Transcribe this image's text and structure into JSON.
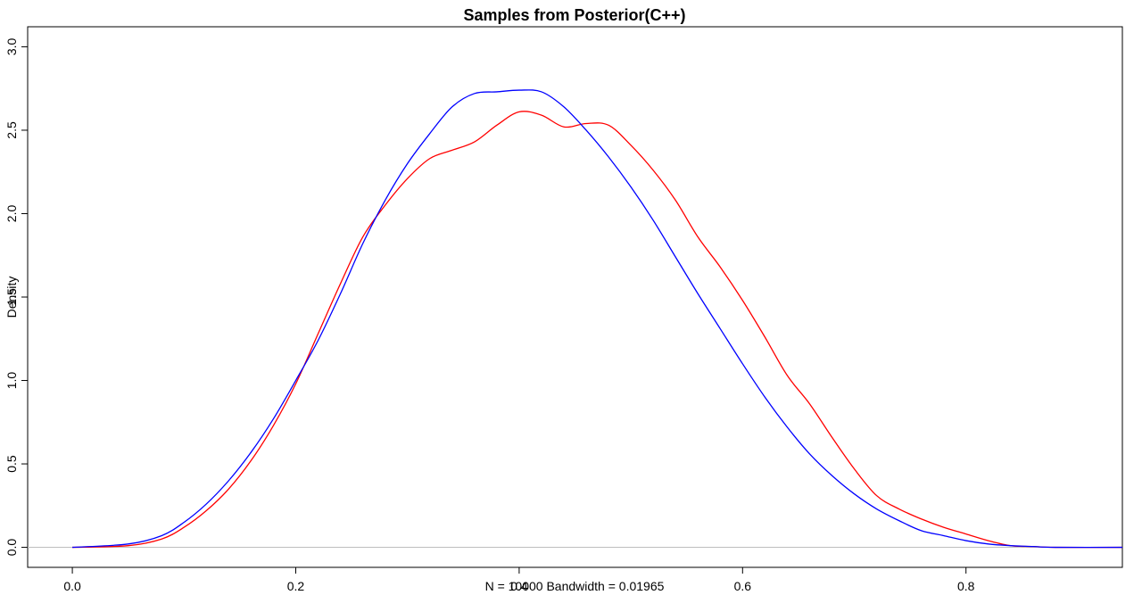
{
  "chart_data": {
    "type": "line",
    "title": "Samples from Posterior(C++)",
    "xlabel": "N = 10000   Bandwidth = 0.01965",
    "ylabel": "Density",
    "xlim": [
      -0.04,
      0.94
    ],
    "ylim": [
      -0.12,
      3.12
    ],
    "x_ticks": [
      "0.0",
      "0.2",
      "0.4",
      "0.6",
      "0.8"
    ],
    "x_tick_values": [
      0.0,
      0.2,
      0.4,
      0.6,
      0.8
    ],
    "y_ticks": [
      "0.0",
      "0.5",
      "1.0",
      "1.5",
      "2.0",
      "2.5",
      "3.0"
    ],
    "y_tick_values": [
      0.0,
      0.5,
      1.0,
      1.5,
      2.0,
      2.5,
      3.0
    ],
    "baseline": 0,
    "grid": false,
    "legend": "none",
    "series": [
      {
        "color": "#FF0000",
        "x": [
          0.0,
          0.05,
          0.08,
          0.1,
          0.12,
          0.14,
          0.16,
          0.18,
          0.2,
          0.22,
          0.24,
          0.26,
          0.28,
          0.3,
          0.32,
          0.34,
          0.36,
          0.38,
          0.4,
          0.42,
          0.44,
          0.46,
          0.48,
          0.5,
          0.52,
          0.54,
          0.56,
          0.58,
          0.6,
          0.62,
          0.64,
          0.66,
          0.68,
          0.7,
          0.72,
          0.74,
          0.76,
          0.78,
          0.8,
          0.82,
          0.84,
          0.86,
          0.88,
          0.94
        ],
        "y": [
          0.0,
          0.01,
          0.05,
          0.12,
          0.22,
          0.35,
          0.52,
          0.73,
          0.98,
          1.28,
          1.58,
          1.86,
          2.05,
          2.21,
          2.33,
          2.38,
          2.43,
          2.53,
          2.61,
          2.59,
          2.52,
          2.54,
          2.53,
          2.41,
          2.26,
          2.08,
          1.86,
          1.68,
          1.48,
          1.26,
          1.03,
          0.86,
          0.66,
          0.47,
          0.31,
          0.23,
          0.17,
          0.12,
          0.08,
          0.04,
          0.01,
          0.005,
          0.0,
          0.0
        ]
      },
      {
        "color": "#0000FF",
        "x": [
          0.0,
          0.05,
          0.08,
          0.1,
          0.12,
          0.14,
          0.16,
          0.18,
          0.2,
          0.22,
          0.24,
          0.26,
          0.28,
          0.3,
          0.32,
          0.34,
          0.36,
          0.38,
          0.4,
          0.42,
          0.44,
          0.46,
          0.48,
          0.5,
          0.52,
          0.54,
          0.56,
          0.58,
          0.6,
          0.62,
          0.64,
          0.66,
          0.68,
          0.7,
          0.72,
          0.74,
          0.76,
          0.78,
          0.8,
          0.82,
          0.84,
          0.86,
          0.88,
          0.94
        ],
        "y": [
          0.0,
          0.02,
          0.07,
          0.15,
          0.26,
          0.4,
          0.57,
          0.77,
          1.0,
          1.24,
          1.52,
          1.82,
          2.08,
          2.3,
          2.48,
          2.64,
          2.72,
          2.73,
          2.74,
          2.73,
          2.64,
          2.5,
          2.34,
          2.16,
          1.96,
          1.74,
          1.52,
          1.31,
          1.1,
          0.9,
          0.72,
          0.56,
          0.43,
          0.32,
          0.23,
          0.16,
          0.1,
          0.07,
          0.04,
          0.02,
          0.01,
          0.005,
          0.0,
          0.0
        ]
      }
    ]
  }
}
